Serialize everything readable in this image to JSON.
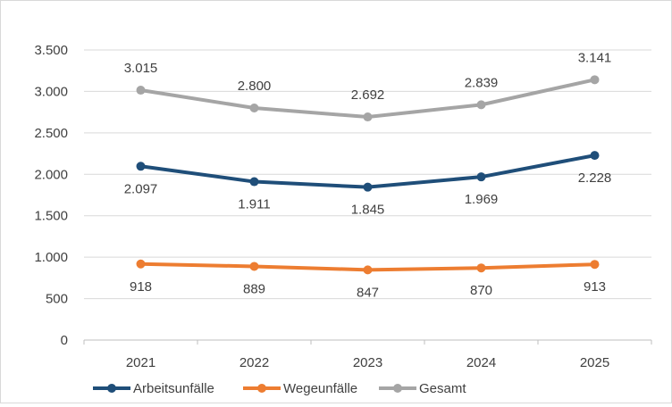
{
  "chart_data": {
    "type": "line",
    "title": "",
    "xlabel": "",
    "ylabel": "",
    "categories": [
      "2021",
      "2022",
      "2023",
      "2024",
      "2025"
    ],
    "ylim": [
      0,
      3500
    ],
    "yticks": [
      0,
      500,
      1000,
      1500,
      2000,
      2500,
      3000,
      3500
    ],
    "ytick_labels": [
      "0",
      "500",
      "1.000",
      "1.500",
      "2.000",
      "2.500",
      "3.000",
      "3.500"
    ],
    "grid": true,
    "legend_position": "bottom",
    "series": [
      {
        "name": "Arbeitsunfälle",
        "color": "#1f4e79",
        "values": [
          2097,
          1911,
          1845,
          1969,
          2228
        ],
        "labels": [
          "2.097",
          "1.911",
          "1.845",
          "1.969",
          "2.228"
        ],
        "label_pos": "below"
      },
      {
        "name": "Wegeunfälle",
        "color": "#ed7d31",
        "values": [
          918,
          889,
          847,
          870,
          913
        ],
        "labels": [
          "918",
          "889",
          "847",
          "870",
          "913"
        ],
        "label_pos": "below"
      },
      {
        "name": "Gesamt",
        "color": "#a5a5a5",
        "values": [
          3015,
          2800,
          2692,
          2839,
          3141
        ],
        "labels": [
          "3.015",
          "2.800",
          "2.692",
          "2.839",
          "3.141"
        ],
        "label_pos": "above"
      }
    ]
  }
}
